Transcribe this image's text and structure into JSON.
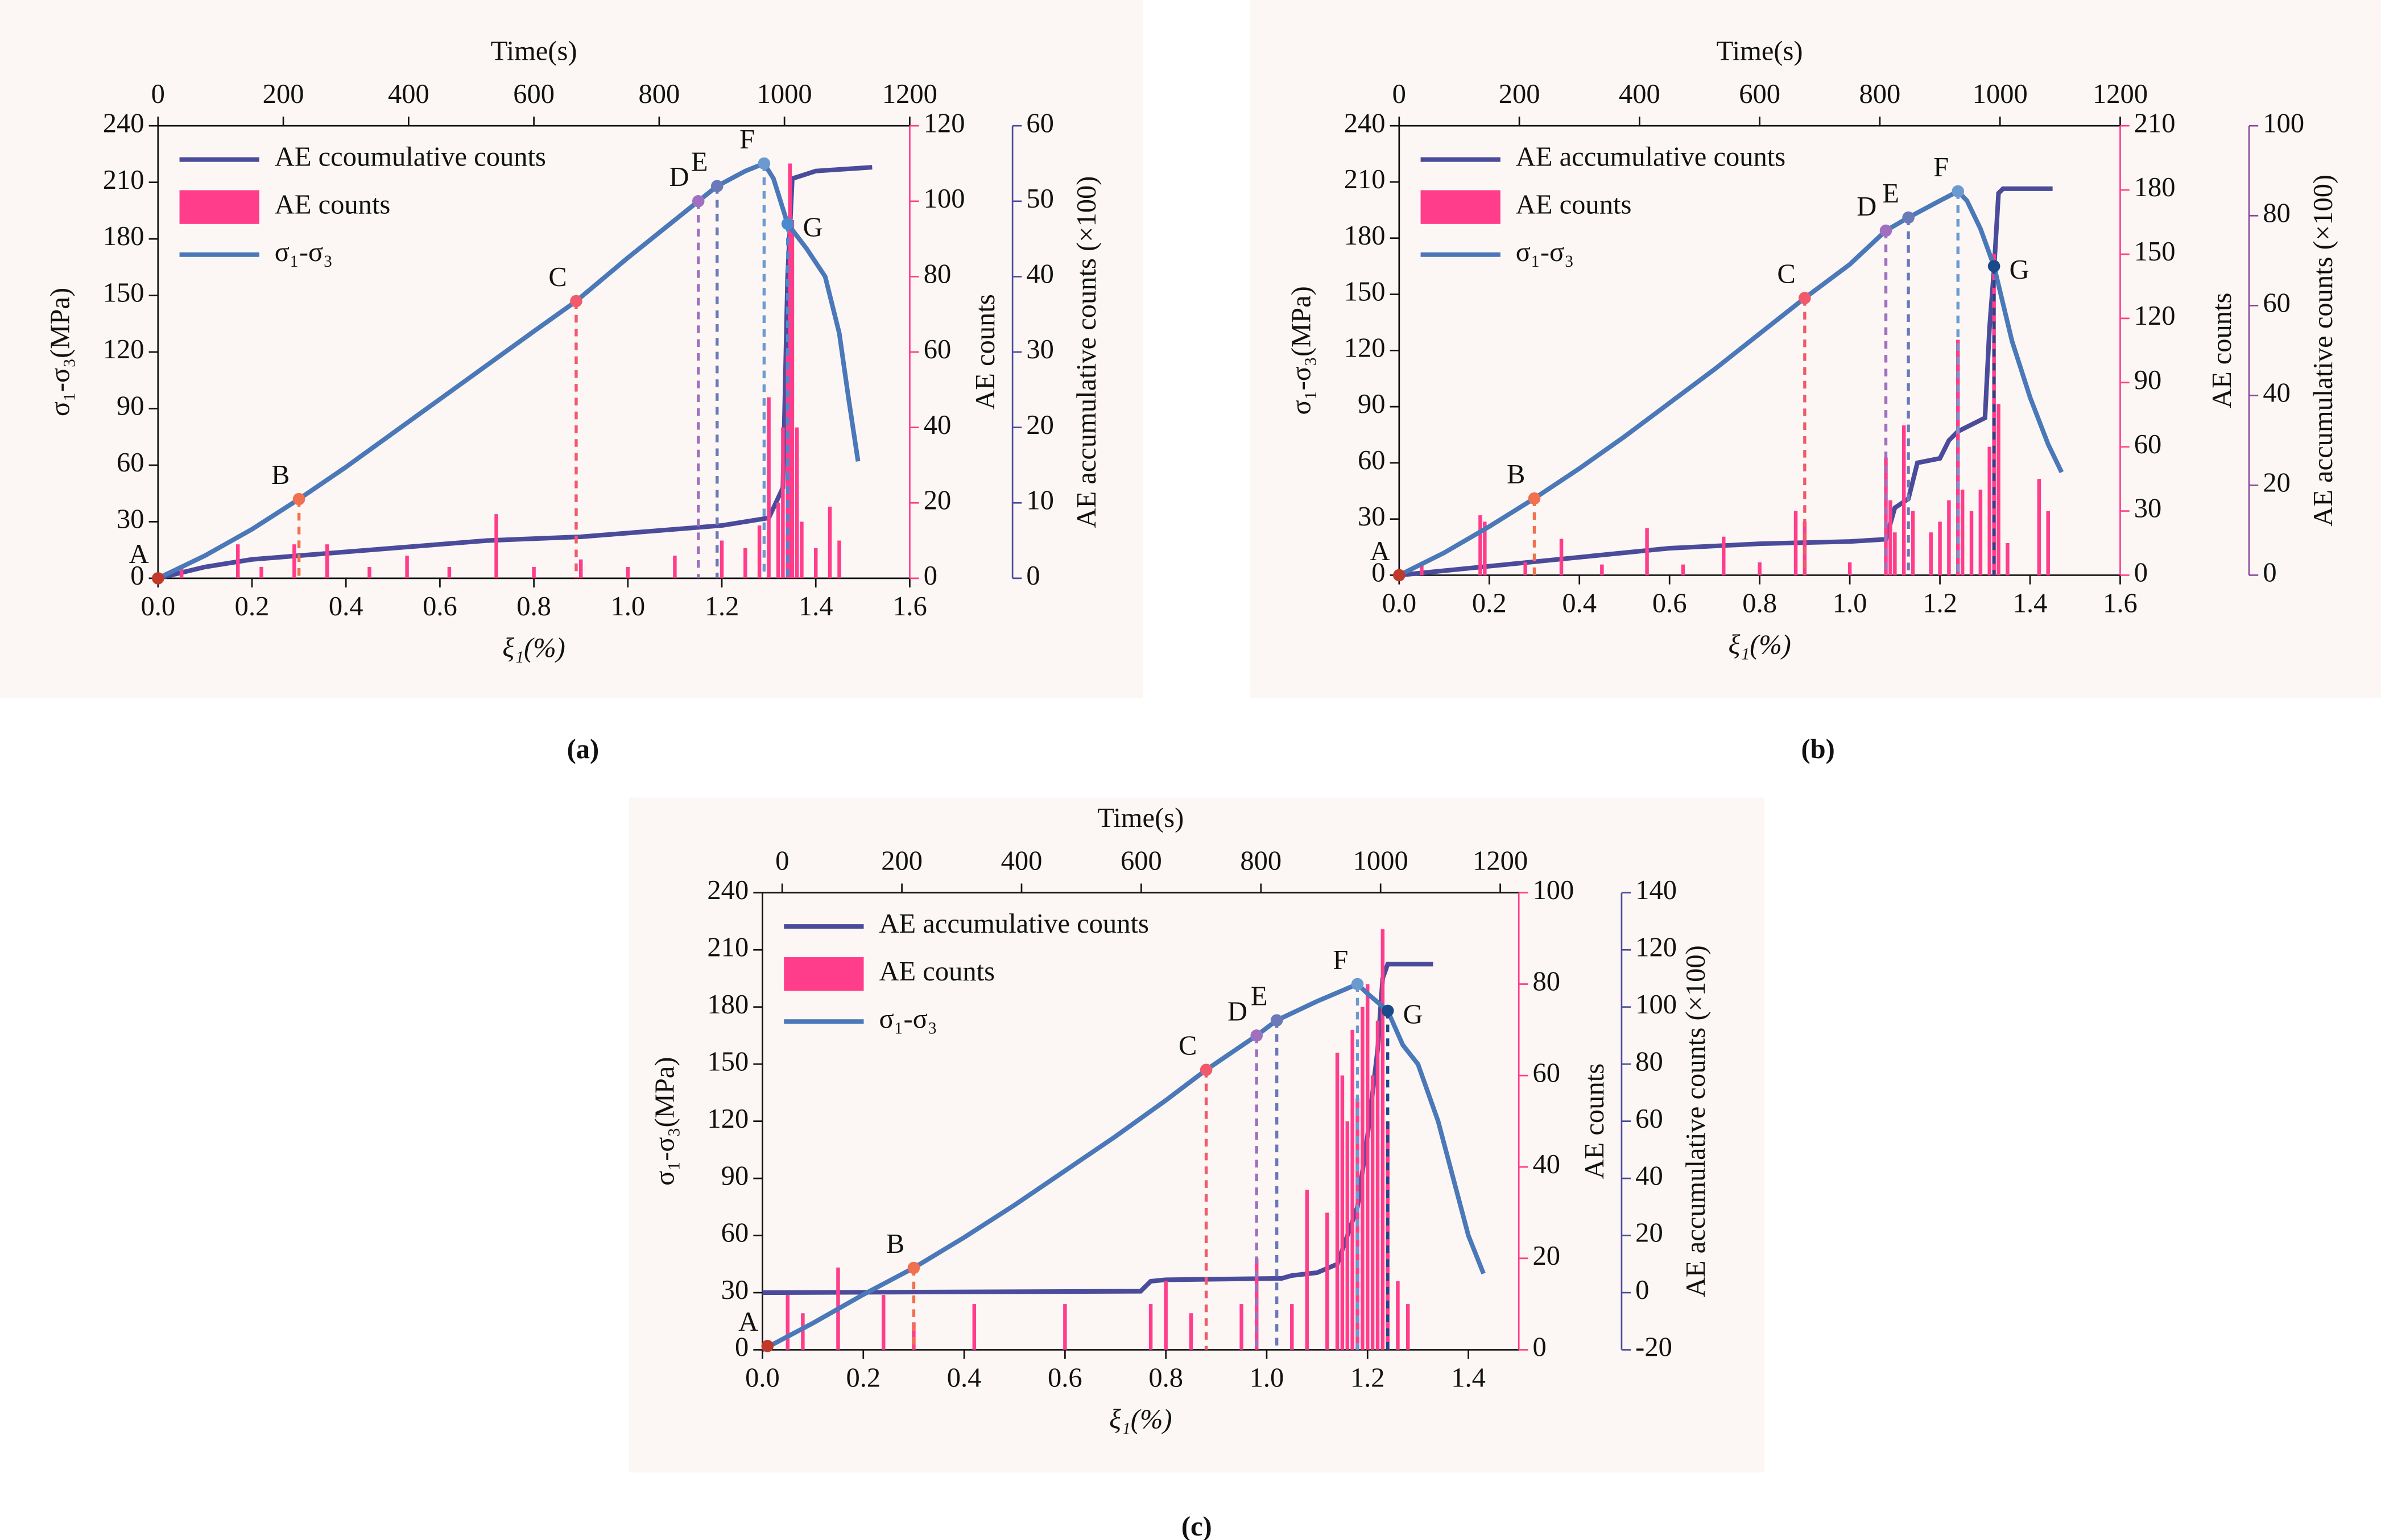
{
  "chart_data": [
    {
      "type": "line",
      "panel": "(a)",
      "xlabel": "ξ₁(%)",
      "toplabel": "Time(s)",
      "ylabel": "σ₁-σ₃(MPa)",
      "y2label": "AE counts",
      "y3label": "AE accumulative counts (×100)",
      "xlim": [
        0,
        1.6
      ],
      "xticks": [
        {
          "value": 0,
          "label": "0.0"
        },
        0.2,
        0.4,
        0.6,
        0.8,
        {
          "value": 1,
          "label": "1.0"
        },
        1.2,
        1.4,
        1.6
      ],
      "timelim": [
        0,
        1200
      ],
      "timeticks": [
        0,
        200,
        400,
        600,
        800,
        1000,
        1200
      ],
      "ylim": [
        0,
        240
      ],
      "yticks": [
        0,
        30,
        60,
        90,
        120,
        150,
        180,
        210,
        240
      ],
      "y2lim": [
        0,
        120
      ],
      "y2ticks": [
        0,
        20,
        40,
        60,
        80,
        100,
        120
      ],
      "y2color": "#ff3d8b",
      "y3lim": [
        0,
        60
      ],
      "y3ticks": [
        0,
        10,
        20,
        30,
        40,
        50,
        60
      ],
      "y3color": "#4b4b9b",
      "series": [
        {
          "name": "AE ccoumulative counts",
          "type": "line",
          "axis": "y3",
          "color": "#4b4b9b",
          "x": [
            0,
            0.1,
            0.2,
            0.3,
            0.5,
            0.7,
            0.9,
            1.0,
            1.2,
            1.3,
            1.33,
            1.34,
            1.35,
            1.4,
            1.52
          ],
          "values": [
            0,
            1.5,
            2.5,
            3,
            4,
            5,
            5.5,
            6,
            7,
            8,
            12,
            40,
            53,
            54,
            54.5
          ]
        },
        {
          "name": "AE counts",
          "type": "bar",
          "axis": "y2",
          "color": "#ff3d8b",
          "x": [
            0.05,
            0.17,
            0.22,
            0.29,
            0.36,
            0.45,
            0.53,
            0.62,
            0.72,
            0.8,
            0.9,
            1.0,
            1.1,
            1.2,
            1.25,
            1.28,
            1.3,
            1.32,
            1.33,
            1.34,
            1.345,
            1.35,
            1.36,
            1.37,
            1.4,
            1.43,
            1.45
          ],
          "values": [
            3,
            9,
            3,
            9,
            9,
            3,
            6,
            3,
            17,
            3,
            5,
            3,
            6,
            10,
            8,
            14,
            48,
            20,
            40,
            60,
            110,
            95,
            40,
            15,
            8,
            19,
            10
          ]
        },
        {
          "name": "σ₁-σ₃",
          "type": "line",
          "axis": "y",
          "color": "#4a78b8",
          "x": [
            0,
            0.1,
            0.2,
            0.3,
            0.4,
            0.5,
            0.6,
            0.7,
            0.8,
            0.89,
            1.0,
            1.1,
            1.15,
            1.19,
            1.25,
            1.29,
            1.31,
            1.34,
            1.38,
            1.42,
            1.45,
            1.47,
            1.49
          ],
          "values": [
            0,
            12,
            26,
            42,
            59,
            77,
            95,
            113,
            131,
            147,
            170,
            190,
            200,
            208,
            216,
            220,
            212,
            188,
            175,
            160,
            130,
            95,
            62
          ]
        }
      ],
      "points": [
        {
          "label": "A",
          "x": 0,
          "y": 0,
          "color": "#c0392b"
        },
        {
          "label": "B",
          "x": 0.3,
          "y": 42,
          "color": "#f07050"
        },
        {
          "label": "C",
          "x": 0.89,
          "y": 147,
          "color": "#f05a6a"
        },
        {
          "label": "D",
          "x": 1.15,
          "y": 200,
          "color": "#a070c0"
        },
        {
          "label": "E",
          "x": 1.19,
          "y": 208,
          "color": "#6a7ab8"
        },
        {
          "label": "F",
          "x": 1.29,
          "y": 220,
          "color": "#6a9ad0"
        },
        {
          "label": "G",
          "x": 1.34,
          "y": 188,
          "color": "#4a8ad0"
        }
      ]
    },
    {
      "type": "line",
      "panel": "(b)",
      "xlabel": "ξ₁(%)",
      "toplabel": "Time(s)",
      "ylabel": "σ₁-σ₃(MPa)",
      "y2label": "AE counts",
      "y3label": "AE accumulative counts (×100)",
      "xlim": [
        0,
        1.6
      ],
      "xticks": [
        {
          "value": 0,
          "label": "0.0"
        },
        0.2,
        0.4,
        0.6,
        0.8,
        {
          "value": 1,
          "label": "1.0"
        },
        1.2,
        1.4,
        1.6
      ],
      "timelim": [
        0,
        1200
      ],
      "timeticks": [
        0,
        200,
        400,
        600,
        800,
        1000,
        1200
      ],
      "ylim": [
        0,
        240
      ],
      "yticks": [
        0,
        30,
        60,
        90,
        120,
        150,
        180,
        210,
        240
      ],
      "y2lim": [
        0,
        210
      ],
      "y2ticks": [
        0,
        30,
        60,
        90,
        120,
        150,
        180,
        210
      ],
      "y2color": "#ff3d8b",
      "y3lim": [
        0,
        100
      ],
      "y3ticks": [
        0,
        20,
        40,
        60,
        80,
        100
      ],
      "y3color": "#8a4a9a",
      "series": [
        {
          "name": "AE accumulative counts",
          "type": "line",
          "axis": "y3",
          "color": "#4b4b9b",
          "x": [
            0,
            0.2,
            0.4,
            0.6,
            0.8,
            1.0,
            1.08,
            1.1,
            1.13,
            1.15,
            1.2,
            1.22,
            1.24,
            1.28,
            1.3,
            1.31,
            1.32,
            1.33,
            1.34,
            1.45
          ],
          "values": [
            0,
            2,
            4,
            6,
            7,
            7.5,
            8,
            15,
            17,
            25,
            26,
            30,
            32,
            34,
            35,
            55,
            68,
            85,
            86,
            86
          ]
        },
        {
          "name": "AE counts",
          "type": "bar",
          "axis": "y2",
          "color": "#ff3d8b",
          "x": [
            0.05,
            0.18,
            0.19,
            0.28,
            0.36,
            0.45,
            0.55,
            0.63,
            0.72,
            0.8,
            0.88,
            0.9,
            1.0,
            1.08,
            1.09,
            1.1,
            1.12,
            1.14,
            1.18,
            1.2,
            1.22,
            1.24,
            1.25,
            1.27,
            1.29,
            1.31,
            1.32,
            1.33,
            1.35,
            1.42,
            1.44
          ],
          "values": [
            5,
            28,
            25,
            6,
            17,
            5,
            22,
            5,
            18,
            6,
            30,
            25,
            6,
            55,
            35,
            20,
            70,
            30,
            20,
            25,
            35,
            110,
            40,
            30,
            40,
            60,
            150,
            80,
            15,
            45,
            30
          ]
        },
        {
          "name": "σ₁-σ₃",
          "type": "line",
          "axis": "y",
          "color": "#4a78b8",
          "x": [
            0,
            0.1,
            0.2,
            0.3,
            0.4,
            0.5,
            0.6,
            0.7,
            0.8,
            0.9,
            1.0,
            1.08,
            1.13,
            1.2,
            1.24,
            1.26,
            1.29,
            1.32,
            1.36,
            1.4,
            1.44,
            1.47
          ],
          "values": [
            0,
            12,
            26,
            41,
            57,
            74,
            92,
            110,
            129,
            148,
            166,
            184,
            191,
            200,
            205,
            200,
            185,
            165,
            125,
            95,
            70,
            55
          ]
        }
      ],
      "points": [
        {
          "label": "A",
          "x": 0,
          "y": 0,
          "color": "#c0392b"
        },
        {
          "label": "B",
          "x": 0.3,
          "y": 41,
          "color": "#f07050"
        },
        {
          "label": "C",
          "x": 0.9,
          "y": 148,
          "color": "#f05a6a"
        },
        {
          "label": "D",
          "x": 1.08,
          "y": 184,
          "color": "#a070c0"
        },
        {
          "label": "E",
          "x": 1.13,
          "y": 191,
          "color": "#6a7ab8"
        },
        {
          "label": "F",
          "x": 1.24,
          "y": 205,
          "color": "#6a9ad0"
        },
        {
          "label": "G",
          "x": 1.32,
          "y": 165,
          "color": "#1a4a8a"
        }
      ]
    },
    {
      "type": "line",
      "panel": "(c)",
      "xlabel": "ξ₁(%)",
      "toplabel": "Time(s)",
      "ylabel": "σ₁-σ₃(MPa)",
      "y2label": "AE counts",
      "y3label": "AE accumulative counts (×100)",
      "xlim": [
        0,
        1.5
      ],
      "xticks": [
        {
          "value": 0,
          "label": "0.0"
        },
        0.2,
        0.4,
        0.6,
        0.8,
        {
          "value": 1,
          "label": "1.0"
        },
        1.2,
        1.4
      ],
      "timelim": [
        -33,
        1231
      ],
      "timeticks": [
        0,
        200,
        400,
        600,
        800,
        1000,
        1200
      ],
      "ylim": [
        0,
        240
      ],
      "yticks": [
        0,
        30,
        60,
        90,
        120,
        150,
        180,
        210,
        240
      ],
      "y2lim": [
        0,
        100
      ],
      "y2ticks": [
        0,
        20,
        40,
        60,
        80,
        100
      ],
      "y2color": "#ff3d8b",
      "y3lim": [
        -20,
        140
      ],
      "y3ticks": [
        -20,
        0,
        20,
        40,
        60,
        80,
        100,
        120,
        140
      ],
      "y3color": "#4b4b9b",
      "series": [
        {
          "name": "AE accumulative counts",
          "type": "line",
          "axis": "y3",
          "color": "#4b4b9b",
          "x": [
            0,
            0.75,
            0.77,
            0.8,
            1.03,
            1.05,
            1.1,
            1.14,
            1.16,
            1.18,
            1.2,
            1.22,
            1.23,
            1.24,
            1.33
          ],
          "values": [
            0,
            0.5,
            4,
            4.5,
            5,
            6,
            7,
            10,
            20,
            30,
            55,
            85,
            110,
            115,
            115
          ]
        },
        {
          "name": "AE counts",
          "type": "bar",
          "axis": "y2",
          "color": "#ff3d8b",
          "x": [
            0.05,
            0.08,
            0.15,
            0.24,
            0.3,
            0.42,
            0.6,
            0.77,
            0.8,
            0.85,
            0.95,
            0.98,
            1.05,
            1.08,
            1.12,
            1.14,
            1.15,
            1.16,
            1.17,
            1.18,
            1.19,
            1.2,
            1.21,
            1.22,
            1.23,
            1.24,
            1.26,
            1.28
          ],
          "values": [
            12,
            8,
            18,
            12,
            6,
            10,
            10,
            10,
            15,
            8,
            10,
            20,
            10,
            35,
            30,
            65,
            60,
            50,
            70,
            55,
            75,
            80,
            60,
            72,
            92,
            50,
            15,
            10
          ]
        },
        {
          "name": "σ₁-σ₃",
          "type": "line",
          "axis": "y",
          "color": "#4a78b8",
          "x": [
            0,
            0.1,
            0.2,
            0.3,
            0.4,
            0.5,
            0.6,
            0.7,
            0.8,
            0.88,
            0.98,
            1.02,
            1.1,
            1.18,
            1.2,
            1.24,
            1.27,
            1.3,
            1.34,
            1.38,
            1.4,
            1.43
          ],
          "values": [
            0,
            14,
            29,
            43,
            59,
            76,
            94,
            112,
            131,
            147,
            165,
            173,
            183,
            192,
            187,
            178,
            160,
            150,
            120,
            80,
            60,
            40
          ]
        }
      ],
      "points": [
        {
          "label": "A",
          "x": 0.01,
          "y": 2,
          "color": "#c0392b"
        },
        {
          "label": "B",
          "x": 0.3,
          "y": 43,
          "color": "#f07050"
        },
        {
          "label": "C",
          "x": 0.88,
          "y": 147,
          "color": "#f05a6a"
        },
        {
          "label": "D",
          "x": 0.98,
          "y": 165,
          "color": "#a070c0"
        },
        {
          "label": "E",
          "x": 1.02,
          "y": 173,
          "color": "#6a7ab8"
        },
        {
          "label": "F",
          "x": 1.18,
          "y": 192,
          "color": "#6a9ad0"
        },
        {
          "label": "G",
          "x": 1.24,
          "y": 178,
          "color": "#1a4a8a"
        }
      ]
    }
  ]
}
